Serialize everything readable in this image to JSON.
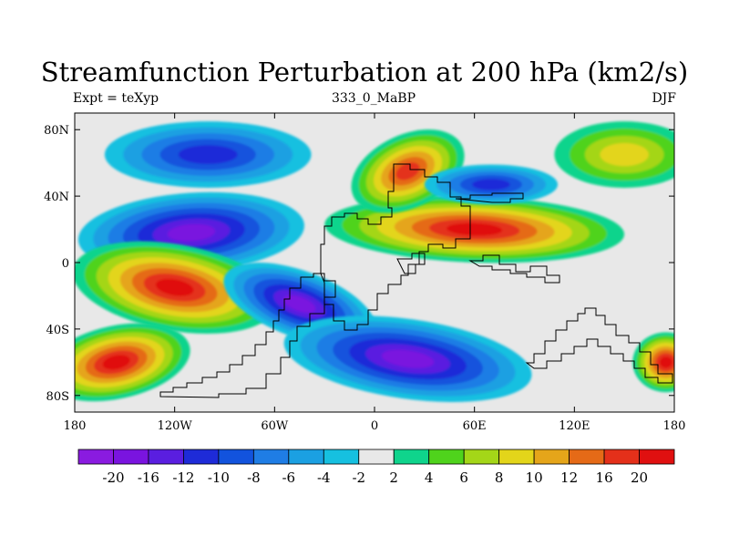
{
  "title": "Streamfunction Perturbation at 200 hPa (km2/s)",
  "left_label": "Expt = teXyp",
  "center_label": "333_0_MaBP",
  "right_label": "DJF",
  "chart_data": {
    "type": "heatmap",
    "title": "Streamfunction Perturbation at 200 hPa (km2/s)",
    "x_ticks": [
      "180",
      "120W",
      "60W",
      "0",
      "60E",
      "120E",
      "180"
    ],
    "y_ticks": [
      "80N",
      "40N",
      "0",
      "40S",
      "80S"
    ],
    "lon_range": [
      -180,
      180
    ],
    "lat_range": [
      -90,
      90
    ],
    "colorbar_levels": [
      "-20",
      "-16",
      "-12",
      "-10",
      "-8",
      "-6",
      "-4",
      "-2",
      "2",
      "4",
      "6",
      "8",
      "10",
      "12",
      "16",
      "20"
    ],
    "colorbar_colors": [
      "#8a1be0",
      "#7a14df",
      "#5a1ee0",
      "#1e2bd8",
      "#1253dd",
      "#1f7de5",
      "#1ba0e2",
      "#16c0e0",
      "#e8e8e8",
      "#0fd48c",
      "#4fd31c",
      "#a4d618",
      "#e3d51a",
      "#e5a51a",
      "#e56a17",
      "#e4301a",
      "#e01010"
    ],
    "features": [
      {
        "name": "north-pacific-low",
        "lon": -100,
        "lat": 65,
        "value": -12
      },
      {
        "name": "subtropical-pacific-low",
        "lon": -110,
        "lat": 18,
        "value": -20
      },
      {
        "name": "south-pacific-high",
        "lon": -120,
        "lat": -15,
        "value": 20
      },
      {
        "name": "southeast-pacific-high",
        "lon": -155,
        "lat": -60,
        "value": 20
      },
      {
        "name": "africa-asia-high",
        "lon": 60,
        "lat": 20,
        "value": 20
      },
      {
        "name": "europe-high",
        "lon": 20,
        "lat": 55,
        "value": 16
      },
      {
        "name": "asia-low",
        "lon": 70,
        "lat": 47,
        "value": -12
      },
      {
        "name": "north-pacific-west-high",
        "lon": 150,
        "lat": 65,
        "value": 8
      },
      {
        "name": "south-atlantic-low",
        "lon": -45,
        "lat": -25,
        "value": -20
      },
      {
        "name": "southern-ocean-low",
        "lon": 20,
        "lat": -58,
        "value": -20
      },
      {
        "name": "southwest-pacific-high",
        "lon": 175,
        "lat": -60,
        "value": 20
      }
    ]
  }
}
